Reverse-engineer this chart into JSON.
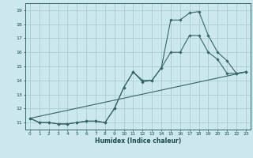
{
  "xlabel": "Humidex (Indice chaleur)",
  "xlim": [
    -0.5,
    23.5
  ],
  "ylim": [
    10.5,
    19.5
  ],
  "yticks": [
    11,
    12,
    13,
    14,
    15,
    16,
    17,
    18,
    19
  ],
  "xticks": [
    0,
    1,
    2,
    3,
    4,
    5,
    6,
    7,
    8,
    9,
    10,
    11,
    12,
    13,
    14,
    15,
    16,
    17,
    18,
    19,
    20,
    21,
    22,
    23
  ],
  "bg_color": "#cce8ec",
  "line_color": "#336666",
  "grid_color": "#aacdd4",
  "line1_x": [
    0,
    1,
    2,
    3,
    4,
    5,
    6,
    7,
    8,
    9,
    10,
    11,
    12,
    13,
    14,
    15,
    16,
    17,
    18,
    19,
    20,
    21,
    22,
    23
  ],
  "line1_y": [
    11.3,
    11.0,
    11.0,
    10.9,
    10.9,
    11.0,
    11.1,
    11.1,
    11.0,
    12.0,
    13.5,
    14.6,
    13.9,
    14.0,
    14.9,
    18.3,
    18.3,
    18.8,
    18.9,
    17.2,
    16.0,
    15.4,
    14.5,
    14.6
  ],
  "line2_x": [
    0,
    1,
    2,
    3,
    4,
    5,
    6,
    7,
    8,
    9,
    10,
    11,
    12,
    13,
    14,
    15,
    16,
    17,
    18,
    19,
    20,
    21,
    22,
    23
  ],
  "line2_y": [
    11.3,
    11.0,
    11.0,
    10.9,
    10.9,
    11.0,
    11.1,
    11.1,
    11.0,
    12.0,
    13.5,
    14.6,
    14.0,
    14.0,
    14.9,
    16.0,
    16.0,
    17.2,
    17.2,
    16.0,
    15.5,
    14.5,
    14.5,
    14.6
  ],
  "line3_x": [
    0,
    23
  ],
  "line3_y": [
    11.3,
    14.6
  ]
}
